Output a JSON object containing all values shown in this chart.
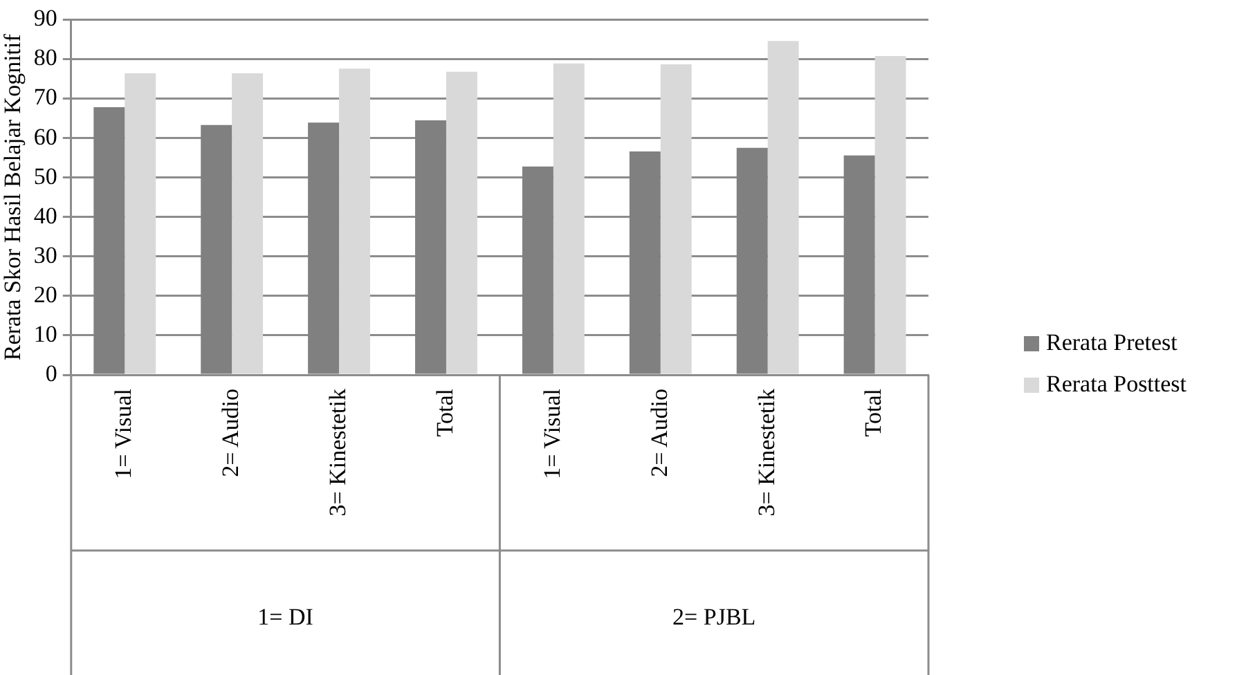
{
  "chart_data": {
    "type": "bar",
    "ylabel": "Rerata Skor Hasil Belajar Kognitif",
    "categories": [
      "1= Visual",
      "2= Audio",
      "3= Kinestetik",
      "Total",
      "1= Visual",
      "2= Audio",
      "3= Kinestetik",
      "Total"
    ],
    "annotations": [
      "1= DI",
      "2= PJBL"
    ],
    "series": [
      {
        "name": "Rerata Pretest",
        "color": "#808080",
        "values": [
          67.8,
          63.3,
          63.9,
          64.5,
          52.8,
          56.6,
          57.5,
          55.6
        ]
      },
      {
        "name": "Rerata Posttest",
        "color": "#d9d9d9",
        "values": [
          76.4,
          76.4,
          77.6,
          76.8,
          78.9,
          78.7,
          84.6,
          80.8
        ]
      }
    ],
    "ylim": [
      0,
      90
    ],
    "yticks": [
      0,
      10,
      20,
      30,
      40,
      50,
      60,
      70,
      80,
      90
    ],
    "grid": "y",
    "legend": "right"
  }
}
